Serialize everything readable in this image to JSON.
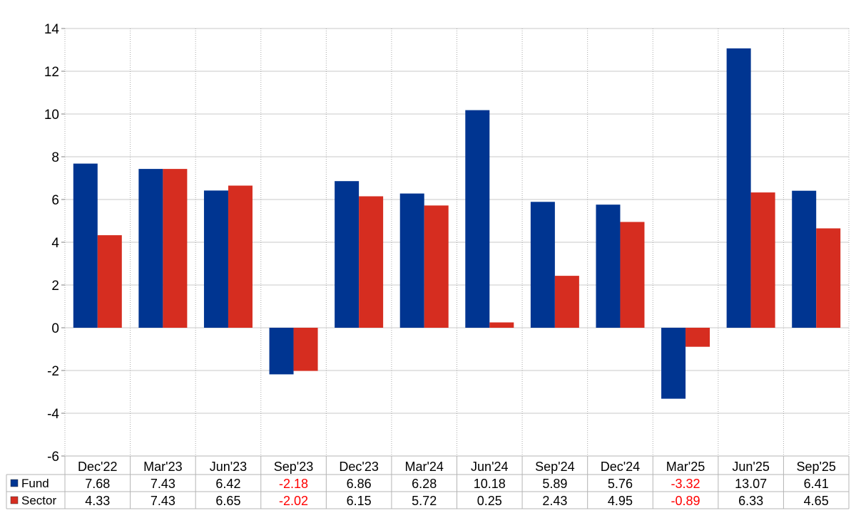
{
  "colors": {
    "fund": "#003591",
    "sector": "#d62d20",
    "negative_text": "#ff0000",
    "grid": "#c8c8c8",
    "text": "#000000"
  },
  "chart_data": {
    "type": "bar",
    "categories": [
      "Dec'22",
      "Mar'23",
      "Jun'23",
      "Sep'23",
      "Dec'23",
      "Mar'24",
      "Jun'24",
      "Sep'24",
      "Dec'24",
      "Mar'25",
      "Jun'25",
      "Sep'25"
    ],
    "series": [
      {
        "name": "Fund",
        "color_key": "fund",
        "values": [
          7.68,
          7.43,
          6.42,
          -2.18,
          6.86,
          6.28,
          10.18,
          5.89,
          5.76,
          -3.32,
          13.07,
          6.41
        ]
      },
      {
        "name": "Sector",
        "color_key": "sector",
        "values": [
          4.33,
          7.43,
          6.65,
          -2.02,
          6.15,
          5.72,
          0.25,
          2.43,
          4.95,
          -0.89,
          6.33,
          4.65
        ]
      }
    ],
    "ylim": [
      -6,
      14
    ],
    "yticks": [
      14,
      12,
      10,
      8,
      6,
      4,
      2,
      0,
      -2,
      -4,
      -6
    ],
    "ytick_labels": [
      "14",
      "12",
      "10",
      "8",
      "6",
      "4",
      "2",
      "0",
      "-2",
      "-4",
      "-6"
    ],
    "grid": true,
    "data_table": {
      "rows": [
        {
          "label": "Fund",
          "values": [
            "7.68",
            "7.43",
            "6.42",
            "-2.18",
            "6.86",
            "6.28",
            "10.18",
            "5.89",
            "5.76",
            "-3.32",
            "13.07",
            "6.41"
          ]
        },
        {
          "label": "Sector",
          "values": [
            "4.33",
            "7.43",
            "6.65",
            "-2.02",
            "6.15",
            "5.72",
            "0.25",
            "2.43",
            "4.95",
            "-0.89",
            "6.33",
            "4.65"
          ]
        }
      ]
    }
  }
}
